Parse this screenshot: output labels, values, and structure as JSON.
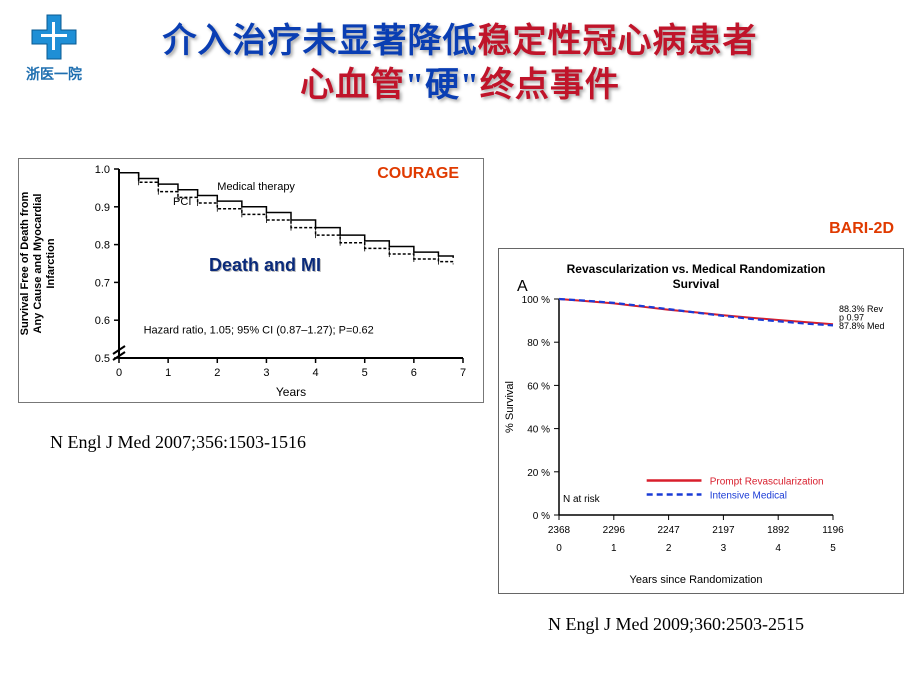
{
  "logo": {
    "org_name": "浙医一院"
  },
  "title": {
    "line1_part1": "介入治疗未显著降低",
    "line1_part2": "稳定性冠心病患者",
    "line2_part1": "心血管",
    "line2_part2": "\"硬\"",
    "line2_part3": "终点事件"
  },
  "citation1": "N Engl J Med 2007;356:1503-1516",
  "citation2": "N Engl J Med 2009;360:2503-2515",
  "chart1": {
    "type": "kaplan-meier",
    "source_label": "COURAGE",
    "overlay_label": "Death and MI",
    "xlabel": "Years",
    "ylabel": "Survival Free of Death from\nAny Cause and Myocardial\nInfarction",
    "hazard_text": "Hazard ratio, 1.05; 95% CI (0.87–1.27); P=0.62",
    "series_labels": {
      "pci": "PCI",
      "med": "Medical therapy"
    },
    "xlim": [
      0,
      7
    ],
    "xtick_step": 1,
    "ylim": [
      0.5,
      1.0
    ],
    "ytick_step": 0.1,
    "axis_break": true,
    "line_color": "#000000",
    "label_fontsize": 11,
    "tick_fontsize": 11,
    "hr_fontsize": 11,
    "background_color": "#ffffff",
    "pci": [
      [
        0,
        0.99
      ],
      [
        0.4,
        0.965
      ],
      [
        0.8,
        0.94
      ],
      [
        1.2,
        0.925
      ],
      [
        1.6,
        0.91
      ],
      [
        2.0,
        0.895
      ],
      [
        2.5,
        0.88
      ],
      [
        3.0,
        0.865
      ],
      [
        3.5,
        0.845
      ],
      [
        4.0,
        0.825
      ],
      [
        4.5,
        0.805
      ],
      [
        5.0,
        0.79
      ],
      [
        5.5,
        0.775
      ],
      [
        6.0,
        0.762
      ],
      [
        6.5,
        0.755
      ],
      [
        6.8,
        0.748
      ]
    ],
    "med": [
      [
        0,
        0.99
      ],
      [
        0.4,
        0.975
      ],
      [
        0.8,
        0.96
      ],
      [
        1.2,
        0.945
      ],
      [
        1.6,
        0.93
      ],
      [
        2.0,
        0.915
      ],
      [
        2.5,
        0.9
      ],
      [
        3.0,
        0.885
      ],
      [
        3.5,
        0.865
      ],
      [
        4.0,
        0.845
      ],
      [
        4.5,
        0.825
      ],
      [
        5.0,
        0.81
      ],
      [
        5.5,
        0.795
      ],
      [
        6.0,
        0.78
      ],
      [
        6.5,
        0.77
      ],
      [
        6.8,
        0.765
      ]
    ]
  },
  "chart2": {
    "type": "kaplan-meier",
    "source_label": "BARI-2D",
    "panel_letter": "A",
    "title_line1": "Revascularization vs. Medical Randomization",
    "title_line2": "Survival",
    "xlabel": "Years since Randomization",
    "ylabel": "% Survival",
    "ylim": [
      0,
      100
    ],
    "ytick_step": 20,
    "xlim": [
      0,
      5
    ],
    "xtick_step": 1,
    "n_at_risk_label": "N at risk",
    "n_at_risk": [
      2368,
      2296,
      2247,
      2197,
      1892,
      1196
    ],
    "end_labels": [
      "88.3% Rev",
      "p 0.97",
      "87.8% Med"
    ],
    "legend": {
      "prompt": {
        "label": "Prompt Revascularization",
        "color": "#d81e2c",
        "dash": "none"
      },
      "intensive": {
        "label": "Intensive Medical",
        "color": "#1a3bd6",
        "dash": "6,4"
      }
    },
    "rev": [
      [
        0,
        100
      ],
      [
        0.5,
        99.0
      ],
      [
        1.0,
        98.0
      ],
      [
        1.5,
        96.5
      ],
      [
        2.0,
        95.0
      ],
      [
        2.5,
        93.8
      ],
      [
        3.0,
        92.5
      ],
      [
        3.5,
        91.3
      ],
      [
        4.0,
        90.3
      ],
      [
        4.5,
        89.3
      ],
      [
        5.0,
        88.3
      ]
    ],
    "med": [
      [
        0,
        100
      ],
      [
        0.5,
        99.2
      ],
      [
        1.0,
        98.2
      ],
      [
        1.5,
        96.8
      ],
      [
        2.0,
        95.3
      ],
      [
        2.5,
        93.7
      ],
      [
        3.0,
        92.2
      ],
      [
        3.5,
        90.8
      ],
      [
        4.0,
        89.7
      ],
      [
        4.5,
        88.6
      ],
      [
        5.0,
        87.8
      ]
    ],
    "background_color": "#ffffff",
    "title_fontsize": 12,
    "label_fontsize": 11,
    "tick_fontsize": 10,
    "end_label_fontsize": 9,
    "legend_fontsize": 10
  }
}
